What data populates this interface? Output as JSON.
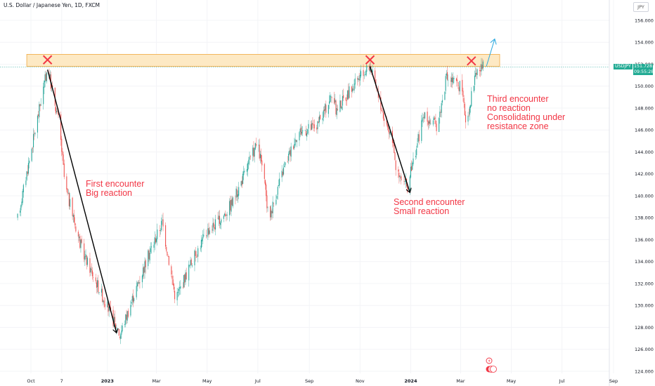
{
  "header": {
    "title": "U.S. Dollar / Japanese Yen, 1D, FXCM",
    "currency": "JPY"
  },
  "price_tag": {
    "symbol": "USDJPY",
    "price": "151.728",
    "countdown": "09:55:28"
  },
  "colors": {
    "up": "#26a69a",
    "down": "#ef5350",
    "zone_fill": "#fde9c4",
    "zone_border": "#f0a841",
    "annotation": "#f23645",
    "trend_arrow": "#000000",
    "projection_arrow": "#2aa9e0",
    "price_line": "#26a69a"
  },
  "annotations": {
    "first": [
      "First encounter",
      "Big reaction"
    ],
    "second": [
      "Second encounter",
      "Small reaction"
    ],
    "third": [
      "Third encounter",
      "no reaction",
      "Consolidating under",
      "resistance zone"
    ]
  },
  "chart_data": {
    "type": "candlestick",
    "title": "U.S. Dollar / Japanese Yen, 1D, FXCM",
    "xlabel": "",
    "ylabel": "",
    "x_ticks": [
      "Oct",
      "7",
      "2023",
      "Mar",
      "May",
      "Jul",
      "Sep",
      "Nov",
      "2024",
      "Mar",
      "May",
      "Jul",
      "Sep"
    ],
    "y_ticks": [
      "124.000",
      "126.000",
      "128.000",
      "130.000",
      "132.000",
      "134.000",
      "136.000",
      "138.000",
      "140.000",
      "142.000",
      "144.000",
      "146.000",
      "148.000",
      "150.000",
      "152.000",
      "154.000",
      "156.000"
    ],
    "ylim": [
      123.4,
      156.7
    ],
    "last_price": 151.728,
    "resistance_zone": {
      "from": 151.8,
      "to": 152.9
    },
    "path_points": [
      [
        "2022-09-15",
        137.9
      ],
      [
        "2022-10-03",
        144.8
      ],
      [
        "2022-10-21",
        151.7
      ],
      [
        "2022-11-04",
        146.6
      ],
      [
        "2022-11-11",
        140.9
      ],
      [
        "2022-12-02",
        134.9
      ],
      [
        "2022-12-20",
        131.9
      ],
      [
        "2023-01-16",
        127.3
      ],
      [
        "2023-01-31",
        130.6
      ],
      [
        "2023-02-20",
        134.7
      ],
      [
        "2023-03-08",
        137.6
      ],
      [
        "2023-03-24",
        130.6
      ],
      [
        "2023-04-10",
        133.6
      ],
      [
        "2023-05-01",
        136.8
      ],
      [
        "2023-05-17",
        137.8
      ],
      [
        "2023-06-02",
        139.6
      ],
      [
        "2023-06-30",
        144.8
      ],
      [
        "2023-07-07",
        142.4
      ],
      [
        "2023-07-14",
        137.9
      ],
      [
        "2023-07-31",
        142.2
      ],
      [
        "2023-08-18",
        145.8
      ],
      [
        "2023-09-11",
        146.4
      ],
      [
        "2023-09-29",
        149.4
      ],
      [
        "2023-10-03",
        147.8
      ],
      [
        "2023-10-23",
        149.9
      ],
      [
        "2023-11-13",
        151.9
      ],
      [
        "2023-12-01",
        146.8
      ],
      [
        "2023-12-11",
        145.1
      ],
      [
        "2023-12-15",
        141.9
      ],
      [
        "2023-12-28",
        140.8
      ],
      [
        "2024-01-16",
        147.2
      ],
      [
        "2024-02-02",
        146.4
      ],
      [
        "2024-02-13",
        150.8
      ],
      [
        "2024-03-01",
        150.0
      ],
      [
        "2024-03-08",
        146.6
      ],
      [
        "2024-03-19",
        151.3
      ],
      [
        "2024-03-28",
        151.7
      ]
    ],
    "trend_arrows": [
      {
        "from": [
          "2022-10-21",
          151.5
        ],
        "to": [
          "2023-01-12",
          127.5
        ]
      },
      {
        "from": [
          "2023-11-13",
          151.8
        ],
        "to": [
          "2023-12-31",
          140.3
        ]
      }
    ],
    "touch_markers": [
      [
        "2022-10-21",
        152.4
      ],
      [
        "2023-11-13",
        152.4
      ],
      [
        "2024-03-14",
        152.3
      ]
    ],
    "projection_arrow": {
      "from": [
        "2024-04-01",
        151.8
      ],
      "to": [
        "2024-04-11",
        154.3
      ]
    }
  }
}
